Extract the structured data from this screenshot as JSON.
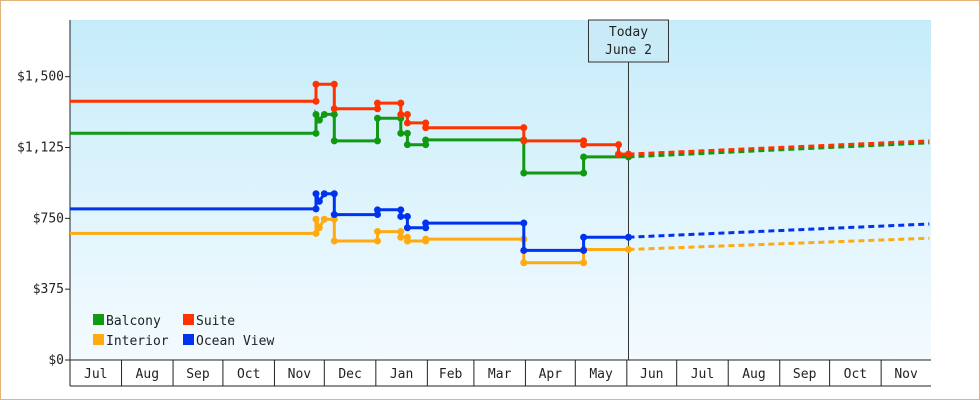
{
  "chart_data": {
    "type": "line",
    "title": "",
    "xlabel": "",
    "ylabel": "",
    "ylim": [
      0,
      1800
    ],
    "y_ticks": [
      {
        "value": 0,
        "label": "$0"
      },
      {
        "value": 375,
        "label": "$375"
      },
      {
        "value": 750,
        "label": "$750"
      },
      {
        "value": 1125,
        "label": "$1,125"
      },
      {
        "value": 1500,
        "label": "$1,500"
      }
    ],
    "x_range": [
      "2024-07-01",
      "2025-11-30"
    ],
    "month_labels": [
      {
        "label": "Jul",
        "start": "2024-07-01",
        "end": "2024-07-31"
      },
      {
        "label": "Aug",
        "start": "2024-08-01",
        "end": "2024-08-31"
      },
      {
        "label": "Sep",
        "start": "2024-09-01",
        "end": "2024-09-30"
      },
      {
        "label": "Oct",
        "start": "2024-10-01",
        "end": "2024-10-31"
      },
      {
        "label": "Nov",
        "start": "2024-11-01",
        "end": "2024-11-30"
      },
      {
        "label": "Dec",
        "start": "2024-12-01",
        "end": "2024-12-31"
      },
      {
        "label": "Jan",
        "start": "2025-01-01",
        "end": "2025-01-31"
      },
      {
        "label": "Feb",
        "start": "2025-02-01",
        "end": "2025-02-28"
      },
      {
        "label": "Mar",
        "start": "2025-03-01",
        "end": "2025-03-31"
      },
      {
        "label": "Apr",
        "start": "2025-04-01",
        "end": "2025-04-30"
      },
      {
        "label": "May",
        "start": "2025-05-01",
        "end": "2025-05-31"
      },
      {
        "label": "Jun",
        "start": "2025-06-01",
        "end": "2025-06-30"
      },
      {
        "label": "Jul",
        "start": "2025-07-01",
        "end": "2025-07-31"
      },
      {
        "label": "Aug",
        "start": "2025-08-01",
        "end": "2025-08-31"
      },
      {
        "label": "Sep",
        "start": "2025-09-01",
        "end": "2025-09-30"
      },
      {
        "label": "Oct",
        "start": "2025-10-01",
        "end": "2025-10-31"
      },
      {
        "label": "Nov",
        "start": "2025-11-01",
        "end": "2025-11-30"
      }
    ],
    "today": {
      "date": "2025-06-02",
      "label_line1": "Today",
      "label_line2": "June 2"
    },
    "legend_position": "bottom-left",
    "grid": false,
    "series": [
      {
        "name": "Balcony",
        "color": "#119911",
        "points": [
          {
            "date": "2024-07-01",
            "value": 1200
          },
          {
            "date": "2024-11-26",
            "value": 1200
          },
          {
            "date": "2024-11-26",
            "value": 1300
          },
          {
            "date": "2024-11-28",
            "value": 1270
          },
          {
            "date": "2024-12-01",
            "value": 1300
          },
          {
            "date": "2024-12-07",
            "value": 1300
          },
          {
            "date": "2024-12-07",
            "value": 1160
          },
          {
            "date": "2025-01-02",
            "value": 1160
          },
          {
            "date": "2025-01-02",
            "value": 1280
          },
          {
            "date": "2025-01-16",
            "value": 1280
          },
          {
            "date": "2025-01-16",
            "value": 1200
          },
          {
            "date": "2025-01-20",
            "value": 1200
          },
          {
            "date": "2025-01-20",
            "value": 1140
          },
          {
            "date": "2025-01-31",
            "value": 1140
          },
          {
            "date": "2025-01-31",
            "value": 1165
          },
          {
            "date": "2025-03-31",
            "value": 1165
          },
          {
            "date": "2025-03-31",
            "value": 990
          },
          {
            "date": "2025-05-06",
            "value": 990
          },
          {
            "date": "2025-05-06",
            "value": 1075
          },
          {
            "date": "2025-06-02",
            "value": 1075
          }
        ],
        "forecast": [
          {
            "date": "2025-06-02",
            "value": 1075
          },
          {
            "date": "2025-11-30",
            "value": 1150
          }
        ]
      },
      {
        "name": "Suite",
        "color": "#ff3300",
        "points": [
          {
            "date": "2024-07-01",
            "value": 1370
          },
          {
            "date": "2024-11-26",
            "value": 1370
          },
          {
            "date": "2024-11-26",
            "value": 1460
          },
          {
            "date": "2024-12-07",
            "value": 1460
          },
          {
            "date": "2024-12-07",
            "value": 1330
          },
          {
            "date": "2025-01-02",
            "value": 1330
          },
          {
            "date": "2025-01-02",
            "value": 1360
          },
          {
            "date": "2025-01-16",
            "value": 1360
          },
          {
            "date": "2025-01-16",
            "value": 1300
          },
          {
            "date": "2025-01-20",
            "value": 1300
          },
          {
            "date": "2025-01-20",
            "value": 1255
          },
          {
            "date": "2025-01-31",
            "value": 1255
          },
          {
            "date": "2025-01-31",
            "value": 1230
          },
          {
            "date": "2025-03-31",
            "value": 1230
          },
          {
            "date": "2025-03-31",
            "value": 1160
          },
          {
            "date": "2025-05-06",
            "value": 1160
          },
          {
            "date": "2025-05-06",
            "value": 1140
          },
          {
            "date": "2025-05-27",
            "value": 1140
          },
          {
            "date": "2025-05-27",
            "value": 1090
          },
          {
            "date": "2025-06-02",
            "value": 1090
          }
        ],
        "forecast": [
          {
            "date": "2025-06-02",
            "value": 1090
          },
          {
            "date": "2025-11-30",
            "value": 1160
          }
        ]
      },
      {
        "name": "Interior",
        "color": "#ffaa11",
        "points": [
          {
            "date": "2024-07-01",
            "value": 670
          },
          {
            "date": "2024-11-26",
            "value": 670
          },
          {
            "date": "2024-11-26",
            "value": 745
          },
          {
            "date": "2024-11-28",
            "value": 700
          },
          {
            "date": "2024-12-01",
            "value": 745
          },
          {
            "date": "2024-12-07",
            "value": 745
          },
          {
            "date": "2024-12-07",
            "value": 630
          },
          {
            "date": "2025-01-02",
            "value": 630
          },
          {
            "date": "2025-01-02",
            "value": 680
          },
          {
            "date": "2025-01-16",
            "value": 680
          },
          {
            "date": "2025-01-16",
            "value": 650
          },
          {
            "date": "2025-01-20",
            "value": 650
          },
          {
            "date": "2025-01-20",
            "value": 630
          },
          {
            "date": "2025-01-31",
            "value": 630
          },
          {
            "date": "2025-01-31",
            "value": 640
          },
          {
            "date": "2025-03-31",
            "value": 640
          },
          {
            "date": "2025-03-31",
            "value": 515
          },
          {
            "date": "2025-05-06",
            "value": 515
          },
          {
            "date": "2025-05-06",
            "value": 585
          },
          {
            "date": "2025-06-02",
            "value": 585
          }
        ],
        "forecast": [
          {
            "date": "2025-06-02",
            "value": 585
          },
          {
            "date": "2025-11-30",
            "value": 645
          }
        ]
      },
      {
        "name": "Ocean View",
        "color": "#0033ee",
        "points": [
          {
            "date": "2024-07-01",
            "value": 800
          },
          {
            "date": "2024-11-26",
            "value": 800
          },
          {
            "date": "2024-11-26",
            "value": 880
          },
          {
            "date": "2024-11-28",
            "value": 840
          },
          {
            "date": "2024-12-01",
            "value": 880
          },
          {
            "date": "2024-12-07",
            "value": 880
          },
          {
            "date": "2024-12-07",
            "value": 770
          },
          {
            "date": "2025-01-02",
            "value": 770
          },
          {
            "date": "2025-01-02",
            "value": 795
          },
          {
            "date": "2025-01-16",
            "value": 795
          },
          {
            "date": "2025-01-16",
            "value": 760
          },
          {
            "date": "2025-01-20",
            "value": 760
          },
          {
            "date": "2025-01-20",
            "value": 700
          },
          {
            "date": "2025-01-31",
            "value": 700
          },
          {
            "date": "2025-01-31",
            "value": 725
          },
          {
            "date": "2025-03-31",
            "value": 725
          },
          {
            "date": "2025-03-31",
            "value": 580
          },
          {
            "date": "2025-05-06",
            "value": 580
          },
          {
            "date": "2025-05-06",
            "value": 650
          },
          {
            "date": "2025-06-02",
            "value": 650
          }
        ],
        "forecast": [
          {
            "date": "2025-06-02",
            "value": 650
          },
          {
            "date": "2025-11-30",
            "value": 720
          }
        ]
      }
    ]
  },
  "colors": {
    "plot_top": "#c6ecfa",
    "plot_bottom": "#f4fbff",
    "frame": "#e3b47a"
  }
}
